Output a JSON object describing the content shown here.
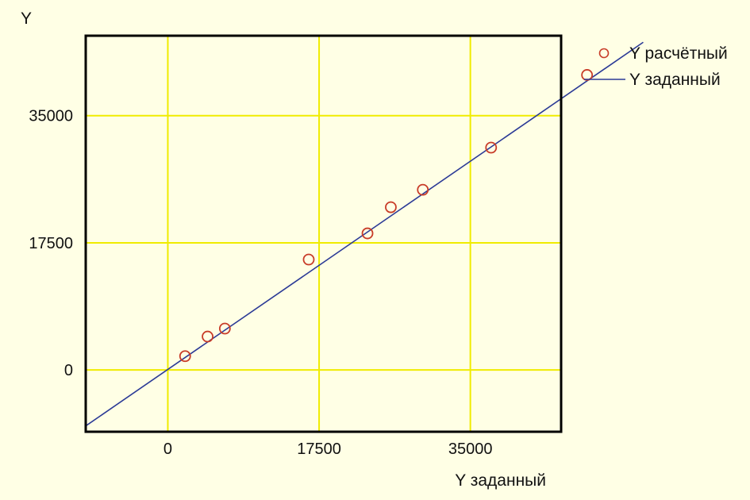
{
  "chart_data": {
    "type": "scatter",
    "title": "",
    "xlabel": "Y заданный",
    "ylabel": "Y",
    "xlim": [
      -9500,
      45500
    ],
    "ylim": [
      -8500,
      46000
    ],
    "xticks": [
      0,
      17500,
      35000
    ],
    "yticks": [
      0,
      17500,
      35000
    ],
    "xtick_labels": [
      "0",
      "17500",
      "35000"
    ],
    "ytick_labels": [
      "0",
      "17500",
      "35000"
    ],
    "grid": true,
    "legend_position": "top-right",
    "series": [
      {
        "name": "Y расчётный",
        "kind": "scatter",
        "color": "#c83c28",
        "points": [
          {
            "x": 2000,
            "y": 1900
          },
          {
            "x": 4600,
            "y": 4600
          },
          {
            "x": 6600,
            "y": 5700
          },
          {
            "x": 16300,
            "y": 15200
          },
          {
            "x": 23100,
            "y": 18800
          },
          {
            "x": 25800,
            "y": 22400
          },
          {
            "x": 29500,
            "y": 24800
          },
          {
            "x": 37400,
            "y": 30600
          },
          {
            "x": 48500,
            "y": 40600
          }
        ]
      },
      {
        "name": "Y заданный",
        "kind": "line",
        "color": "#2b3a96",
        "points": [
          {
            "x": -9500,
            "y": -7700
          },
          {
            "x": 55000,
            "y": 45100
          }
        ]
      }
    ]
  },
  "colors": {
    "background": "#ffffe5",
    "plot_background": "#ffffe5",
    "grid": "#f0ec00",
    "frame": "#000000"
  }
}
